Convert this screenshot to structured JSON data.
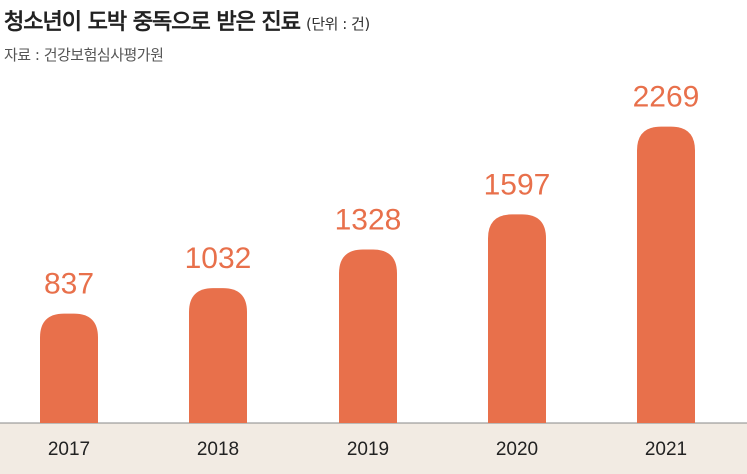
{
  "header": {
    "title": "청소년이 도박 중독으로 받은 진료",
    "unit": "(단위 : 건)",
    "source": "자료 : 건강보험심사평가원"
  },
  "colors": {
    "bar": "#e8704b",
    "axis_band": "#f2ebe3"
  },
  "chart_data": {
    "type": "bar",
    "title": "청소년이 도박 중독으로 받은 진료",
    "xlabel": "",
    "ylabel": "",
    "categories": [
      "2017",
      "2018",
      "2019",
      "2020",
      "2021"
    ],
    "values": [
      837,
      1032,
      1328,
      1597,
      2269
    ],
    "data_labels": [
      "837",
      "1032",
      "1328",
      "1597",
      "2269"
    ],
    "ylim": [
      0,
      2350
    ],
    "grid": false,
    "legend": "none"
  }
}
